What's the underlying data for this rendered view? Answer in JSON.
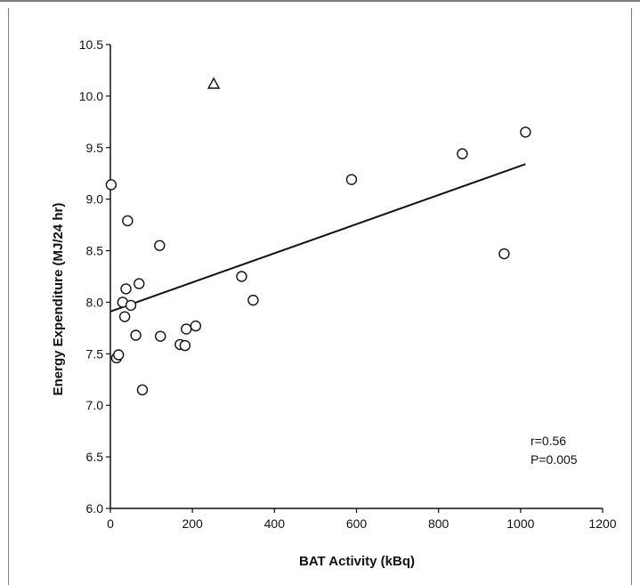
{
  "chart_data": {
    "type": "scatter",
    "xlabel": "BAT Activity (kBq)",
    "ylabel": "Energy Expenditure (MJ/24 hr)",
    "xlim": [
      0,
      1200
    ],
    "ylim": [
      6.0,
      10.5
    ],
    "x_ticks": [
      0,
      200,
      400,
      600,
      800,
      1000,
      1200
    ],
    "y_ticks": [
      "6.0",
      "6.5",
      "7.0",
      "7.5",
      "8.0",
      "8.5",
      "9.0",
      "9.5",
      "10.0",
      "10.5"
    ],
    "grid": false,
    "points": [
      {
        "x": 2,
        "y": 9.14
      },
      {
        "x": 15,
        "y": 7.46
      },
      {
        "x": 20,
        "y": 7.49
      },
      {
        "x": 30,
        "y": 8.0
      },
      {
        "x": 35,
        "y": 7.86
      },
      {
        "x": 38,
        "y": 8.13
      },
      {
        "x": 42,
        "y": 8.79
      },
      {
        "x": 50,
        "y": 7.97
      },
      {
        "x": 62,
        "y": 7.68
      },
      {
        "x": 70,
        "y": 8.18
      },
      {
        "x": 78,
        "y": 7.15
      },
      {
        "x": 120,
        "y": 8.55
      },
      {
        "x": 122,
        "y": 7.67
      },
      {
        "x": 170,
        "y": 7.59
      },
      {
        "x": 182,
        "y": 7.58
      },
      {
        "x": 185,
        "y": 7.74
      },
      {
        "x": 208,
        "y": 7.77
      },
      {
        "x": 320,
        "y": 8.25
      },
      {
        "x": 348,
        "y": 8.02
      },
      {
        "x": 588,
        "y": 9.19
      },
      {
        "x": 858,
        "y": 9.44
      },
      {
        "x": 960,
        "y": 8.47
      },
      {
        "x": 1012,
        "y": 9.65
      }
    ],
    "outlier": {
      "x": 252,
      "y": 10.12,
      "marker": "triangle"
    },
    "fit_line": {
      "x": [
        0,
        1012
      ],
      "y": [
        7.91,
        9.34
      ]
    },
    "annotation": {
      "r": "r=0.56",
      "p": "P=0.005"
    }
  }
}
